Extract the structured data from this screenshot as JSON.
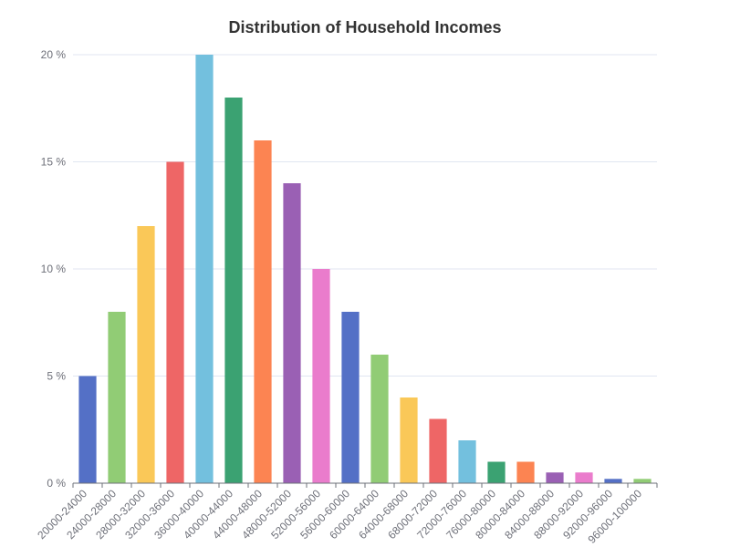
{
  "chart_data": {
    "type": "bar",
    "title": "Distribution of Household Incomes",
    "categories": [
      "20000-24000",
      "24000-28000",
      "28000-32000",
      "32000-36000",
      "36000-40000",
      "40000-44000",
      "44000-48000",
      "48000-52000",
      "52000-56000",
      "56000-60000",
      "60000-64000",
      "64000-68000",
      "68000-72000",
      "72000-76000",
      "76000-80000",
      "80000-84000",
      "84000-88000",
      "88000-92000",
      "92000-96000",
      "96000-100000"
    ],
    "values": [
      5,
      8,
      12,
      15,
      20,
      18,
      16,
      14,
      10,
      8,
      6,
      4,
      3,
      2,
      1,
      1,
      0.5,
      0.5,
      0.2,
      0.2
    ],
    "ylim": [
      0,
      20
    ],
    "yticks": [
      0,
      5,
      10,
      15,
      20
    ],
    "ytick_labels": [
      "0 %",
      "5 %",
      "10 %",
      "15 %",
      "20 %"
    ],
    "grid": true,
    "xlabel": "",
    "ylabel": "",
    "colors": [
      "#5470c6",
      "#91cc75",
      "#fac858",
      "#ee6666",
      "#73c0de",
      "#3ba272",
      "#fc8452",
      "#9a60b4",
      "#ea7ccc"
    ],
    "gridline_color": "#e0e6f1",
    "axis_color": "#6e7079",
    "label_color": "#6e7079"
  }
}
